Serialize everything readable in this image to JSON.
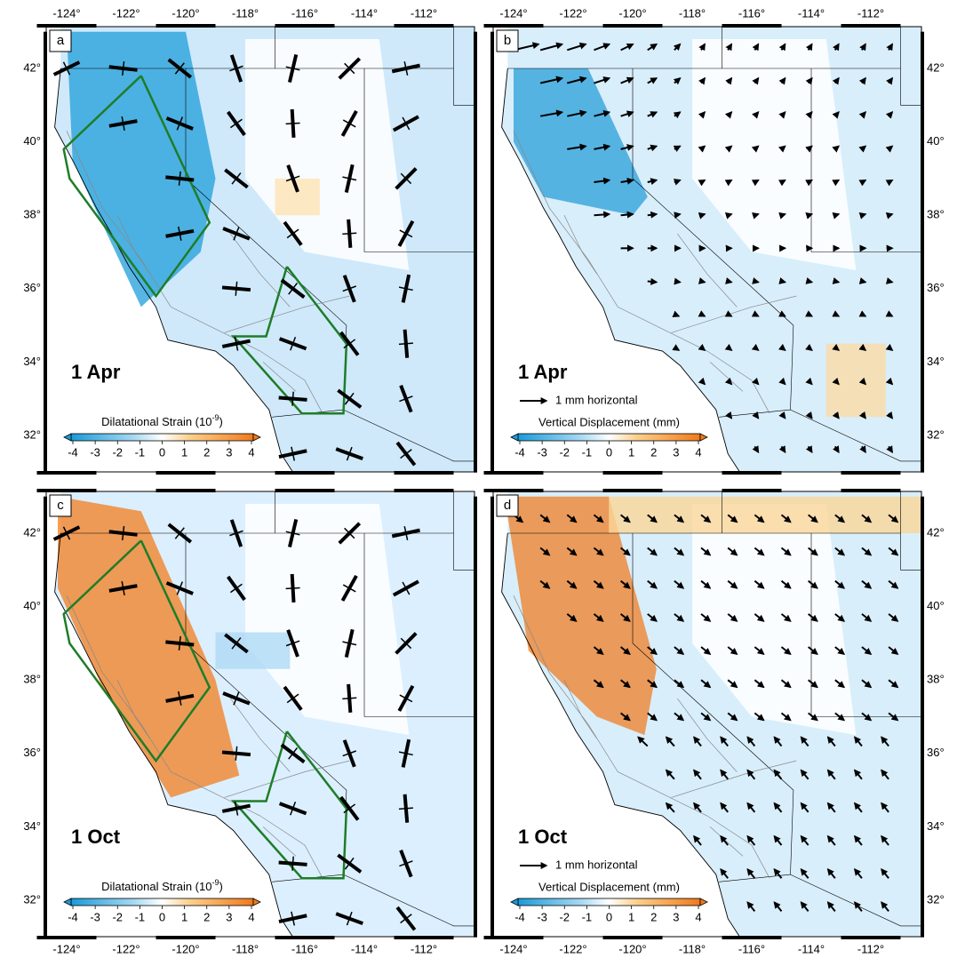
{
  "axes": {
    "lon_labels": [
      "-124°",
      "-122°",
      "-120°",
      "-118°",
      "-116°",
      "-114°",
      "-112°"
    ],
    "lat_labels": [
      "42°",
      "40°",
      "38°",
      "36°",
      "34°",
      "32°"
    ]
  },
  "panels": [
    {
      "label": "a",
      "date": "1 Apr",
      "colorbar": {
        "title_prefix": "Dilatational Strain (10",
        "title_exponent": "-9",
        "title_suffix": ")",
        "ticks": [
          "-4",
          "-3",
          "-2",
          "-1",
          "0",
          "1",
          "2",
          "3",
          "4"
        ]
      }
    },
    {
      "label": "b",
      "date": "1 Apr",
      "scale_label": "1 mm horizontal",
      "colorbar": {
        "title": "Vertical Displacement (mm)",
        "ticks": [
          "-4",
          "-3",
          "-2",
          "-1",
          "0",
          "1",
          "2",
          "3",
          "4"
        ]
      }
    },
    {
      "label": "c",
      "date": "1 Oct",
      "colorbar": {
        "title_prefix": "Dilatational Strain (10",
        "title_exponent": "-9",
        "title_suffix": ")",
        "ticks": [
          "-4",
          "-3",
          "-2",
          "-1",
          "0",
          "1",
          "2",
          "3",
          "4"
        ]
      }
    },
    {
      "label": "d",
      "date": "1 Oct",
      "scale_label": "1 mm horizontal",
      "colorbar": {
        "title": "Vertical Displacement (mm)",
        "ticks": [
          "-4",
          "-3",
          "-2",
          "-1",
          "0",
          "1",
          "2",
          "3",
          "4"
        ]
      }
    }
  ]
}
